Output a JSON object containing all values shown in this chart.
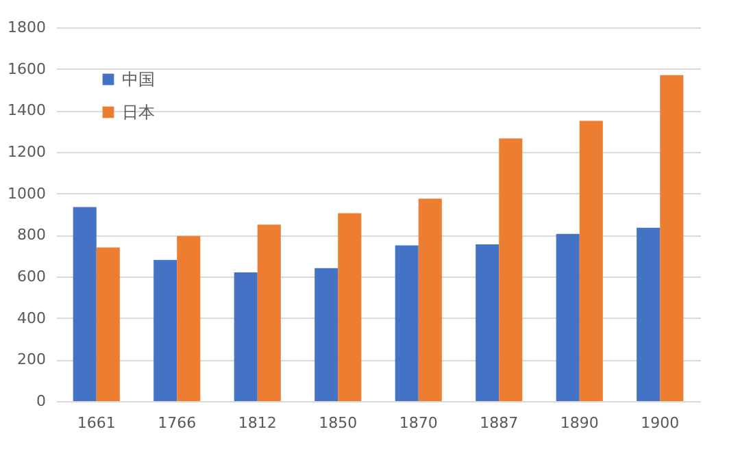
{
  "chart_data": {
    "type": "bar",
    "categories": [
      "1661",
      "1766",
      "1812",
      "1850",
      "1870",
      "1887",
      "1890",
      "1900"
    ],
    "series": [
      {
        "name": "中国",
        "color": "#4472c4",
        "values": [
          935,
          680,
          620,
          640,
          750,
          755,
          805,
          835
        ]
      },
      {
        "name": "日本",
        "color": "#ed7d31",
        "values": [
          740,
          795,
          850,
          905,
          975,
          1265,
          1350,
          1570
        ]
      }
    ],
    "ylim": [
      0,
      1800
    ],
    "yticks": [
      0,
      200,
      400,
      600,
      800,
      1000,
      1200,
      1400,
      1600,
      1800
    ],
    "grid": "y",
    "legend": "top left"
  }
}
